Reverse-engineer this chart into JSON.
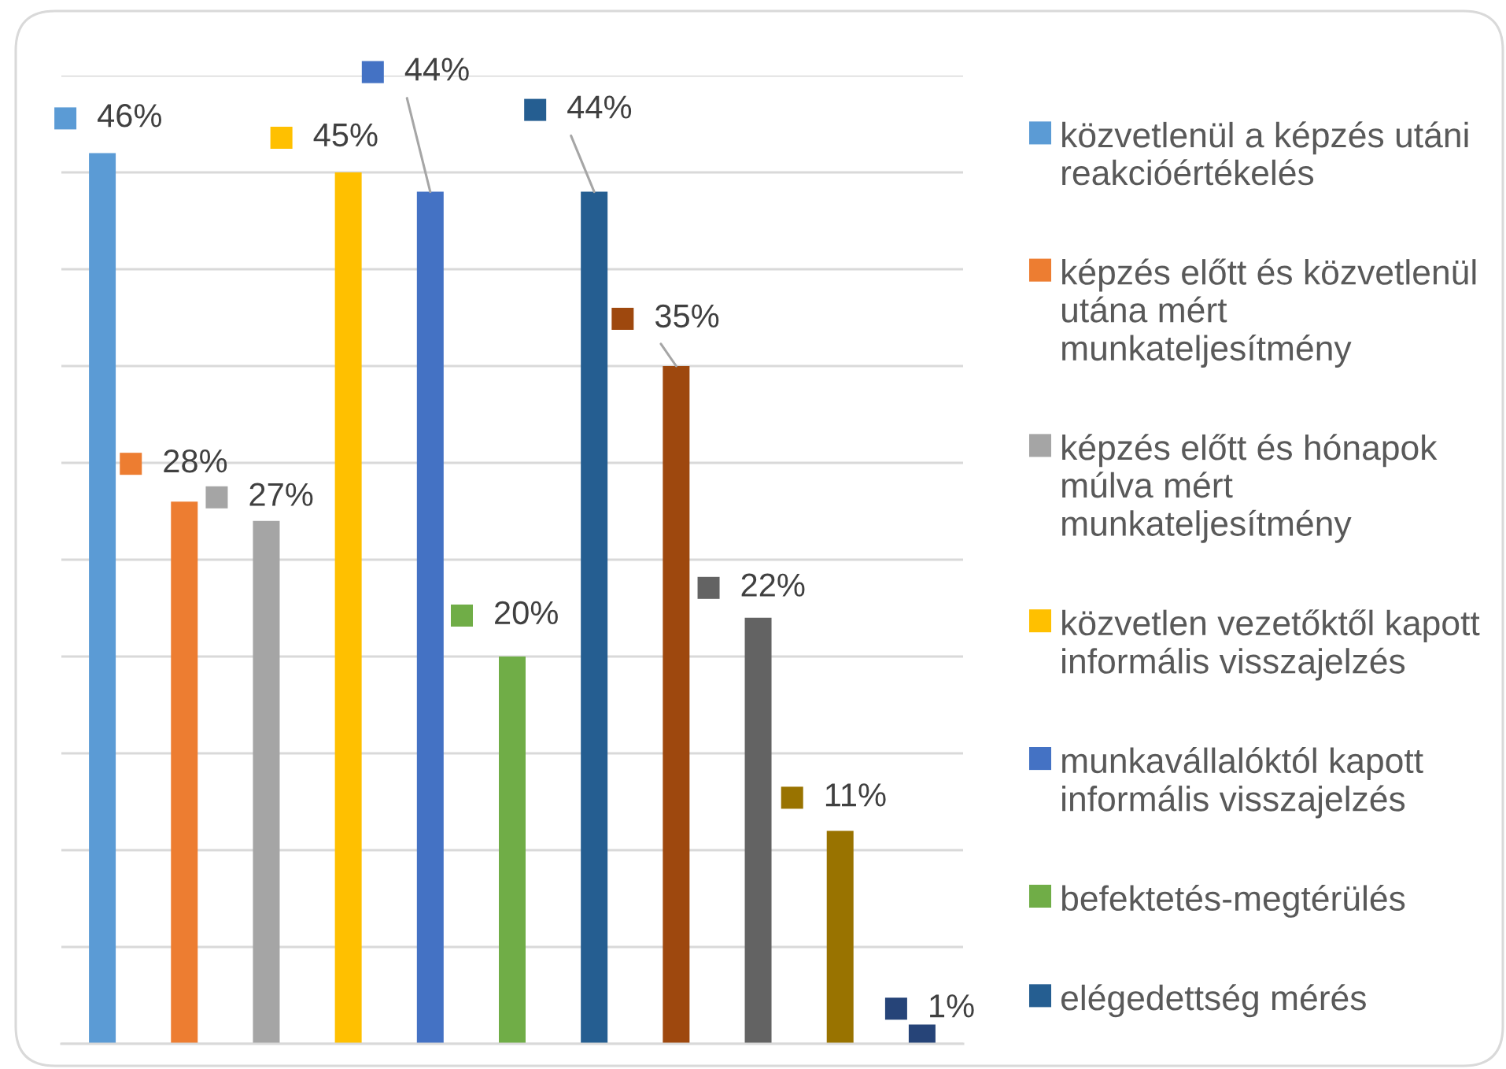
{
  "chart_data": {
    "type": "bar",
    "stacked": true,
    "categories": [
      null,
      null,
      null,
      null,
      null,
      null,
      null,
      null,
      null,
      null,
      null
    ],
    "series": [
      {
        "name": "közvetlenül a képzés utáni reakcióértékelés",
        "color": "#5b9bd5",
        "values": [
          46,
          null,
          null,
          null,
          null,
          null,
          null,
          null,
          null,
          null,
          null
        ],
        "value_labels": [
          "46%",
          null,
          null,
          null,
          null,
          null,
          null,
          null,
          null,
          null,
          null
        ]
      },
      {
        "name": "képzés előtt és közvetlenül utána mért munkateljesítmény",
        "color": "#ed7d31",
        "values": [
          null,
          28,
          null,
          null,
          null,
          null,
          null,
          null,
          null,
          null,
          null
        ],
        "value_labels": [
          null,
          "28%",
          null,
          null,
          null,
          null,
          null,
          null,
          null,
          null,
          null
        ]
      },
      {
        "name": "képzés előtt és hónapok múlva mért munkateljesítmény",
        "color": "#a5a5a5",
        "values": [
          null,
          null,
          27,
          null,
          null,
          null,
          null,
          null,
          null,
          null,
          null
        ],
        "value_labels": [
          null,
          null,
          "27%",
          null,
          null,
          null,
          null,
          null,
          null,
          null,
          null
        ]
      },
      {
        "name": "közvetlen vezetőktől kapott informális visszajelzés",
        "color": "#ffc000",
        "values": [
          null,
          null,
          null,
          45,
          null,
          null,
          null,
          null,
          null,
          null,
          null
        ],
        "value_labels": [
          null,
          null,
          null,
          "45%",
          null,
          null,
          null,
          null,
          null,
          null,
          null
        ]
      },
      {
        "name": "munkavállalóktól kapott informális visszajelzés",
        "color": "#4472c4",
        "values": [
          null,
          null,
          null,
          null,
          44,
          null,
          null,
          null,
          null,
          null,
          null
        ],
        "value_labels": [
          null,
          null,
          null,
          null,
          "44%",
          null,
          null,
          null,
          null,
          null,
          null
        ]
      },
      {
        "name": "befektetés-megtérülés",
        "color": "#70ad47",
        "values": [
          null,
          null,
          null,
          null,
          null,
          20,
          null,
          null,
          null,
          null,
          null
        ],
        "value_labels": [
          null,
          null,
          null,
          null,
          null,
          "20%",
          null,
          null,
          null,
          null,
          null
        ]
      },
      {
        "name": "elégedettség mérés",
        "color": "#255e91",
        "values": [
          null,
          null,
          null,
          null,
          null,
          null,
          44,
          null,
          null,
          null,
          null
        ],
        "value_labels": [
          null,
          null,
          null,
          null,
          null,
          null,
          "44%",
          null,
          null,
          null,
          null
        ]
      },
      {
        "color": "#9e480e",
        "values": [
          null,
          null,
          null,
          null,
          null,
          null,
          null,
          35,
          null,
          null,
          null
        ],
        "value_labels": [
          null,
          null,
          null,
          null,
          null,
          null,
          null,
          "35%",
          null,
          null,
          null
        ]
      },
      {
        "color": "#636363",
        "values": [
          null,
          null,
          null,
          null,
          null,
          null,
          null,
          null,
          22,
          null,
          null
        ],
        "value_labels": [
          null,
          null,
          null,
          null,
          null,
          null,
          null,
          null,
          "22%",
          null,
          null
        ]
      },
      {
        "color": "#997300",
        "values": [
          null,
          null,
          null,
          null,
          null,
          null,
          null,
          null,
          null,
          11,
          null
        ],
        "value_labels": [
          null,
          null,
          null,
          null,
          null,
          null,
          null,
          null,
          null,
          "11%",
          null
        ]
      },
      {
        "color": "#264478",
        "values": [
          null,
          null,
          null,
          null,
          null,
          null,
          null,
          null,
          null,
          null,
          1
        ],
        "value_labels": [
          null,
          null,
          null,
          null,
          null,
          null,
          null,
          null,
          null,
          null,
          "1%"
        ]
      }
    ],
    "ylim": [
      0,
      50
    ],
    "yticks": [
      {
        "value": 0,
        "label": null
      },
      {
        "value": 5,
        "label": null
      },
      {
        "value": 10,
        "label": null
      },
      {
        "value": 15,
        "label": null
      },
      {
        "value": 20,
        "label": null
      },
      {
        "value": 25,
        "label": null
      },
      {
        "value": 30,
        "label": null
      },
      {
        "value": 35,
        "label": null
      },
      {
        "value": 40,
        "label": null
      },
      {
        "value": 45,
        "label": null
      },
      {
        "value": 50,
        "label": null
      }
    ],
    "grid": "y",
    "legend": "right"
  }
}
